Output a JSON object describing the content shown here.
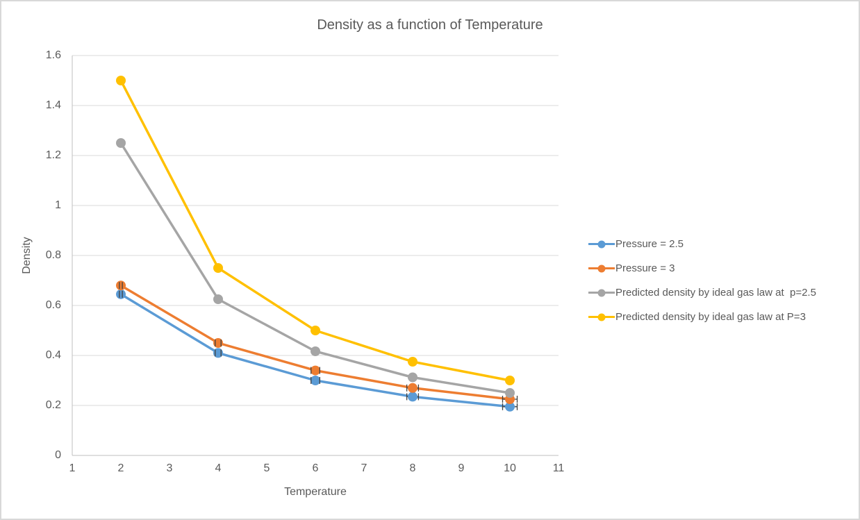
{
  "chart_data": {
    "type": "line",
    "title": "Density as a function of Temperature",
    "xlabel": "Temperature",
    "ylabel": "Density",
    "x": [
      2,
      4,
      6,
      8,
      10
    ],
    "series": [
      {
        "id": "pressure-2-5",
        "name": "Pressure = 2.5",
        "color": "#5B9BD5",
        "marker": "circle",
        "values": [
          0.645,
          0.41,
          0.3,
          0.235,
          0.195
        ],
        "x_error": [
          0.03,
          0.06,
          0.09,
          0.12,
          0.15
        ]
      },
      {
        "id": "pressure-3",
        "name": "Pressure = 3",
        "color": "#ED7D31",
        "marker": "circle",
        "values": [
          0.68,
          0.45,
          0.34,
          0.27,
          0.225
        ],
        "x_error": [
          0.03,
          0.06,
          0.09,
          0.12,
          0.15
        ]
      },
      {
        "id": "predicted-ideal-gas-p-2-5",
        "name": "Predicted density by ideal gas law at  p=2.5",
        "color": "#A5A5A5",
        "marker": "circle",
        "values": [
          1.25,
          0.625,
          0.4167,
          0.3125,
          0.25
        ]
      },
      {
        "id": "predicted-ideal-gas-p-3",
        "name": "Predicted density by ideal gas law at P=3",
        "color": "#FFC000",
        "marker": "circle",
        "values": [
          1.5,
          0.75,
          0.5,
          0.375,
          0.3
        ]
      }
    ],
    "xlim": [
      1,
      11
    ],
    "ylim": [
      0,
      1.6
    ],
    "x_ticks": [
      "1",
      "2",
      "3",
      "4",
      "5",
      "6",
      "7",
      "8",
      "9",
      "10",
      "11"
    ],
    "y_ticks": [
      {
        "value": 0,
        "label": "0"
      },
      {
        "value": 0.2,
        "label": "0.2"
      },
      {
        "value": 0.4,
        "label": "0.4"
      },
      {
        "value": 0.6,
        "label": "0.6"
      },
      {
        "value": 0.8,
        "label": "0.8"
      },
      {
        "value": 1,
        "label": "1"
      },
      {
        "value": 1.2,
        "label": "1.2"
      },
      {
        "value": 1.4,
        "label": "1.4"
      },
      {
        "value": 1.6,
        "label": "1.6"
      }
    ],
    "grid": "horizontal-only",
    "legend_position": "right-middle",
    "style": {
      "background": "#FFFFFF",
      "frame_border_color": "#D8D8D8",
      "text_color": "#595959",
      "gridline_color": "#D9D9D9",
      "axis_line_color": "#BFBFBF",
      "error_bar_color": "#404040"
    }
  }
}
